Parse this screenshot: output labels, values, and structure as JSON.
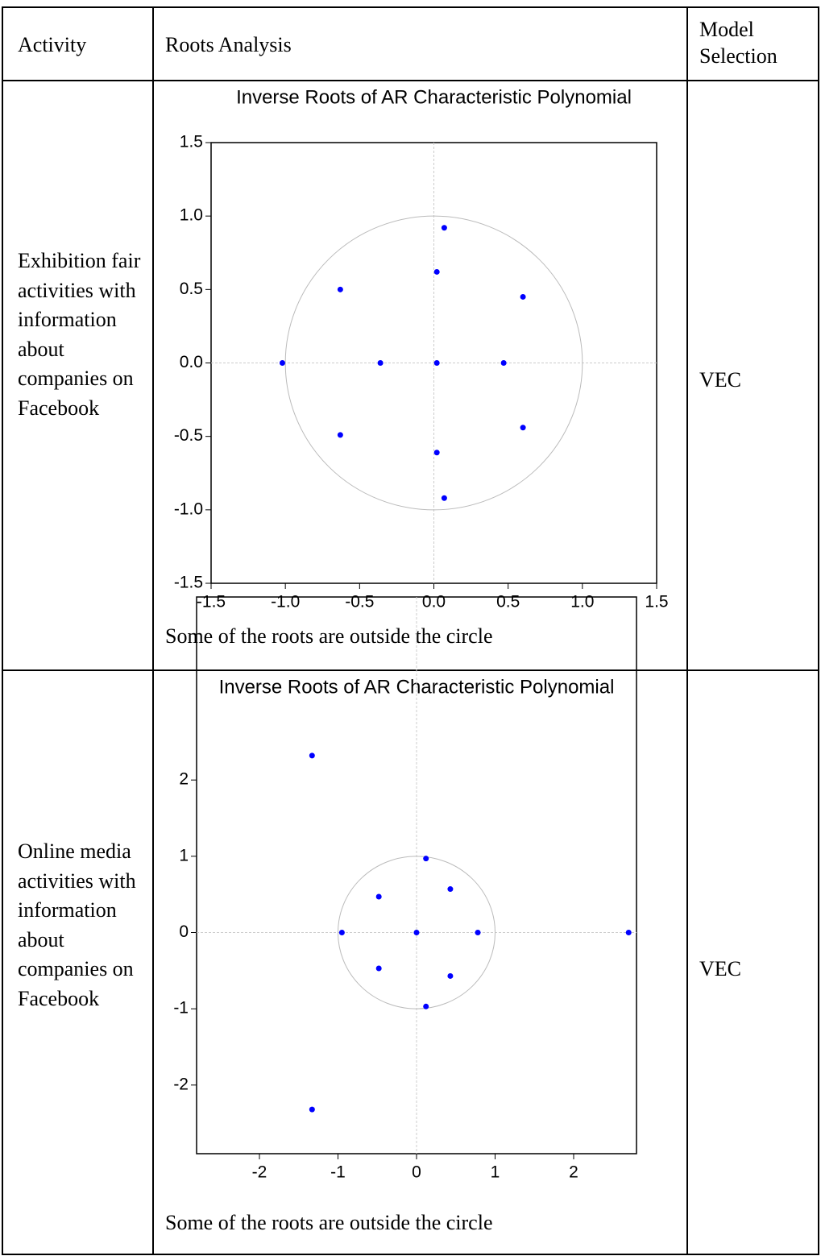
{
  "table": {
    "header": [
      "Activity",
      "Roots Analysis",
      "Model Selection"
    ],
    "rows": [
      {
        "activity": "Exhibition fair activities with information about companies on Facebook",
        "chart_data": {
          "type": "scatter",
          "title": "Inverse Roots of AR Characteristic Polynomial",
          "color": "#0000ff",
          "x": [
            0.07,
            0.02,
            -0.63,
            0.6,
            -1.02,
            -0.36,
            0.02,
            0.47,
            -0.63,
            0.6,
            0.02,
            0.07
          ],
          "values": [
            0.92,
            0.62,
            0.5,
            0.45,
            0,
            0,
            0,
            0,
            -0.49,
            -0.44,
            -0.61,
            -0.92
          ],
          "xlim": [
            -1.5,
            1.5
          ],
          "ylim": [
            -1.5,
            1.5
          ],
          "xticks": [
            {
              "value": -1.5,
              "label": "-1.5"
            },
            {
              "value": -1,
              "label": "-1.0"
            },
            {
              "value": -0.5,
              "label": "-0.5"
            },
            {
              "value": 0,
              "label": "0.0"
            },
            {
              "value": 0.5,
              "label": "0.5"
            },
            {
              "value": 1,
              "label": "1.0"
            },
            {
              "value": 1.5,
              "label": "1.5"
            }
          ],
          "yticks": [
            {
              "value": -1.5,
              "label": "-1.5"
            },
            {
              "value": -1,
              "label": "-1.0"
            },
            {
              "value": -0.5,
              "label": "-0.5"
            },
            {
              "value": 0,
              "label": "0.0"
            },
            {
              "value": 0.5,
              "label": "0.5"
            },
            {
              "value": 1,
              "label": "1.0"
            },
            {
              "value": 1.5,
              "label": "1.5"
            }
          ]
        },
        "note": "Some of the roots are outside the circle",
        "model": "VEC"
      },
      {
        "activity": "Online media activities with information about companies on Facebook",
        "chart_data": {
          "type": "scatter",
          "title": "Inverse Roots of AR Characteristic Polynomial",
          "color": "#0000ff",
          "x": [
            -1.33,
            0.12,
            0.43,
            -0.48,
            -0.95,
            0,
            0.78,
            2.7,
            -0.48,
            0.43,
            0.12,
            -1.33
          ],
          "values": [
            2.32,
            0.97,
            0.57,
            0.47,
            0,
            0,
            0,
            0,
            -0.47,
            -0.57,
            -0.97,
            -2.32
          ],
          "xlim": [
            -2.8,
            2.8
          ],
          "ylim": [
            -2.9,
            4.4
          ],
          "xticks": [
            -2,
            -1,
            0,
            1,
            2
          ],
          "yticks": [
            -2,
            -1,
            0,
            1,
            2
          ]
        },
        "note": "Some of the roots are outside the circle",
        "model": "VEC"
      }
    ]
  }
}
